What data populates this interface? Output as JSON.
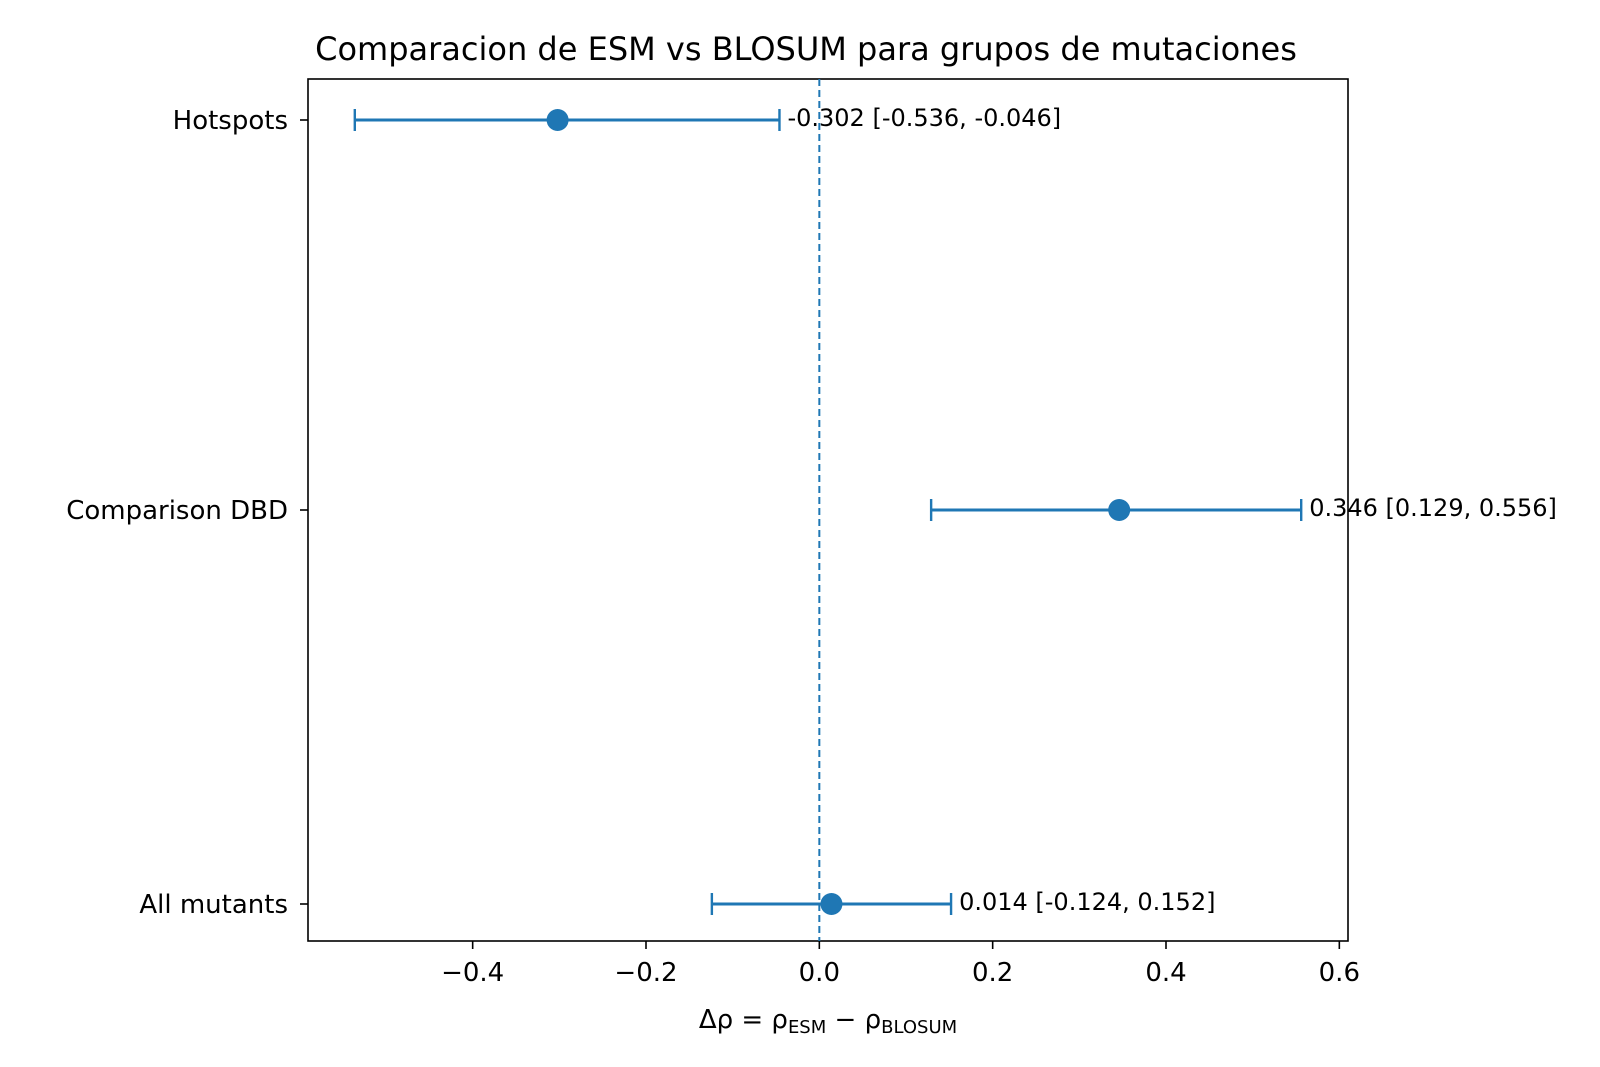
{
  "chart_data": {
    "type": "scatter",
    "title": "Comparacion de ESM vs BLOSUM para grupos de mutaciones",
    "xlabel": {
      "base": "Δρ = ρ",
      "sub1": "ESM",
      "mid": " − ρ",
      "sub2": "BLOSUM"
    },
    "ylabel": "",
    "xlim": [
      -0.59,
      0.61
    ],
    "xticks": [
      -0.4,
      -0.2,
      0.0,
      0.2,
      0.4,
      0.6
    ],
    "xtick_labels": [
      "−0.4",
      "−0.2",
      "0.0",
      "0.2",
      "0.4",
      "0.6"
    ],
    "categories": [
      "All mutants",
      "Comparison DBD",
      "Hotspots"
    ],
    "points": [
      {
        "category": "All mutants",
        "value": 0.014,
        "ci_low": -0.124,
        "ci_high": 0.152,
        "label": "0.014 [-0.124, 0.152]"
      },
      {
        "category": "Comparison DBD",
        "value": 0.346,
        "ci_low": 0.129,
        "ci_high": 0.556,
        "label": "0.346 [0.129, 0.556]"
      },
      {
        "category": "Hotspots",
        "value": -0.302,
        "ci_low": -0.536,
        "ci_high": -0.046,
        "label": "-0.302 [-0.536, -0.046]"
      }
    ],
    "reference_line": {
      "x": 0.0,
      "style": "dashed"
    },
    "grid": false,
    "colors": {
      "series": "#1f77b4",
      "axis": "#000000"
    }
  }
}
